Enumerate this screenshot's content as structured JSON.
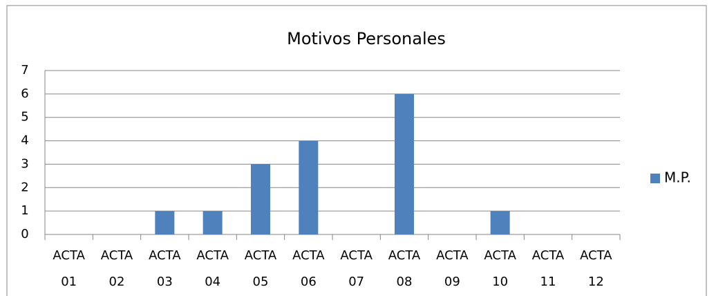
{
  "chart_data": {
    "type": "bar",
    "title": "Motivos Personales",
    "categories": [
      "ACTA 01",
      "ACTA 02",
      "ACTA 03",
      "ACTA 04",
      "ACTA 05",
      "ACTA 06",
      "ACTA 07",
      "ACTA 08",
      "ACTA 09",
      "ACTA 10",
      "ACTA 11",
      "ACTA 12"
    ],
    "series": [
      {
        "name": "M.P.",
        "color": "#4f81bd",
        "values": [
          0,
          0,
          1,
          1,
          3,
          4,
          0,
          6,
          0,
          1,
          0,
          0
        ]
      }
    ],
    "ylim": [
      0,
      7
    ],
    "yticks": [
      0,
      1,
      2,
      3,
      4,
      5,
      6,
      7
    ],
    "grid": true,
    "legend": "right"
  }
}
